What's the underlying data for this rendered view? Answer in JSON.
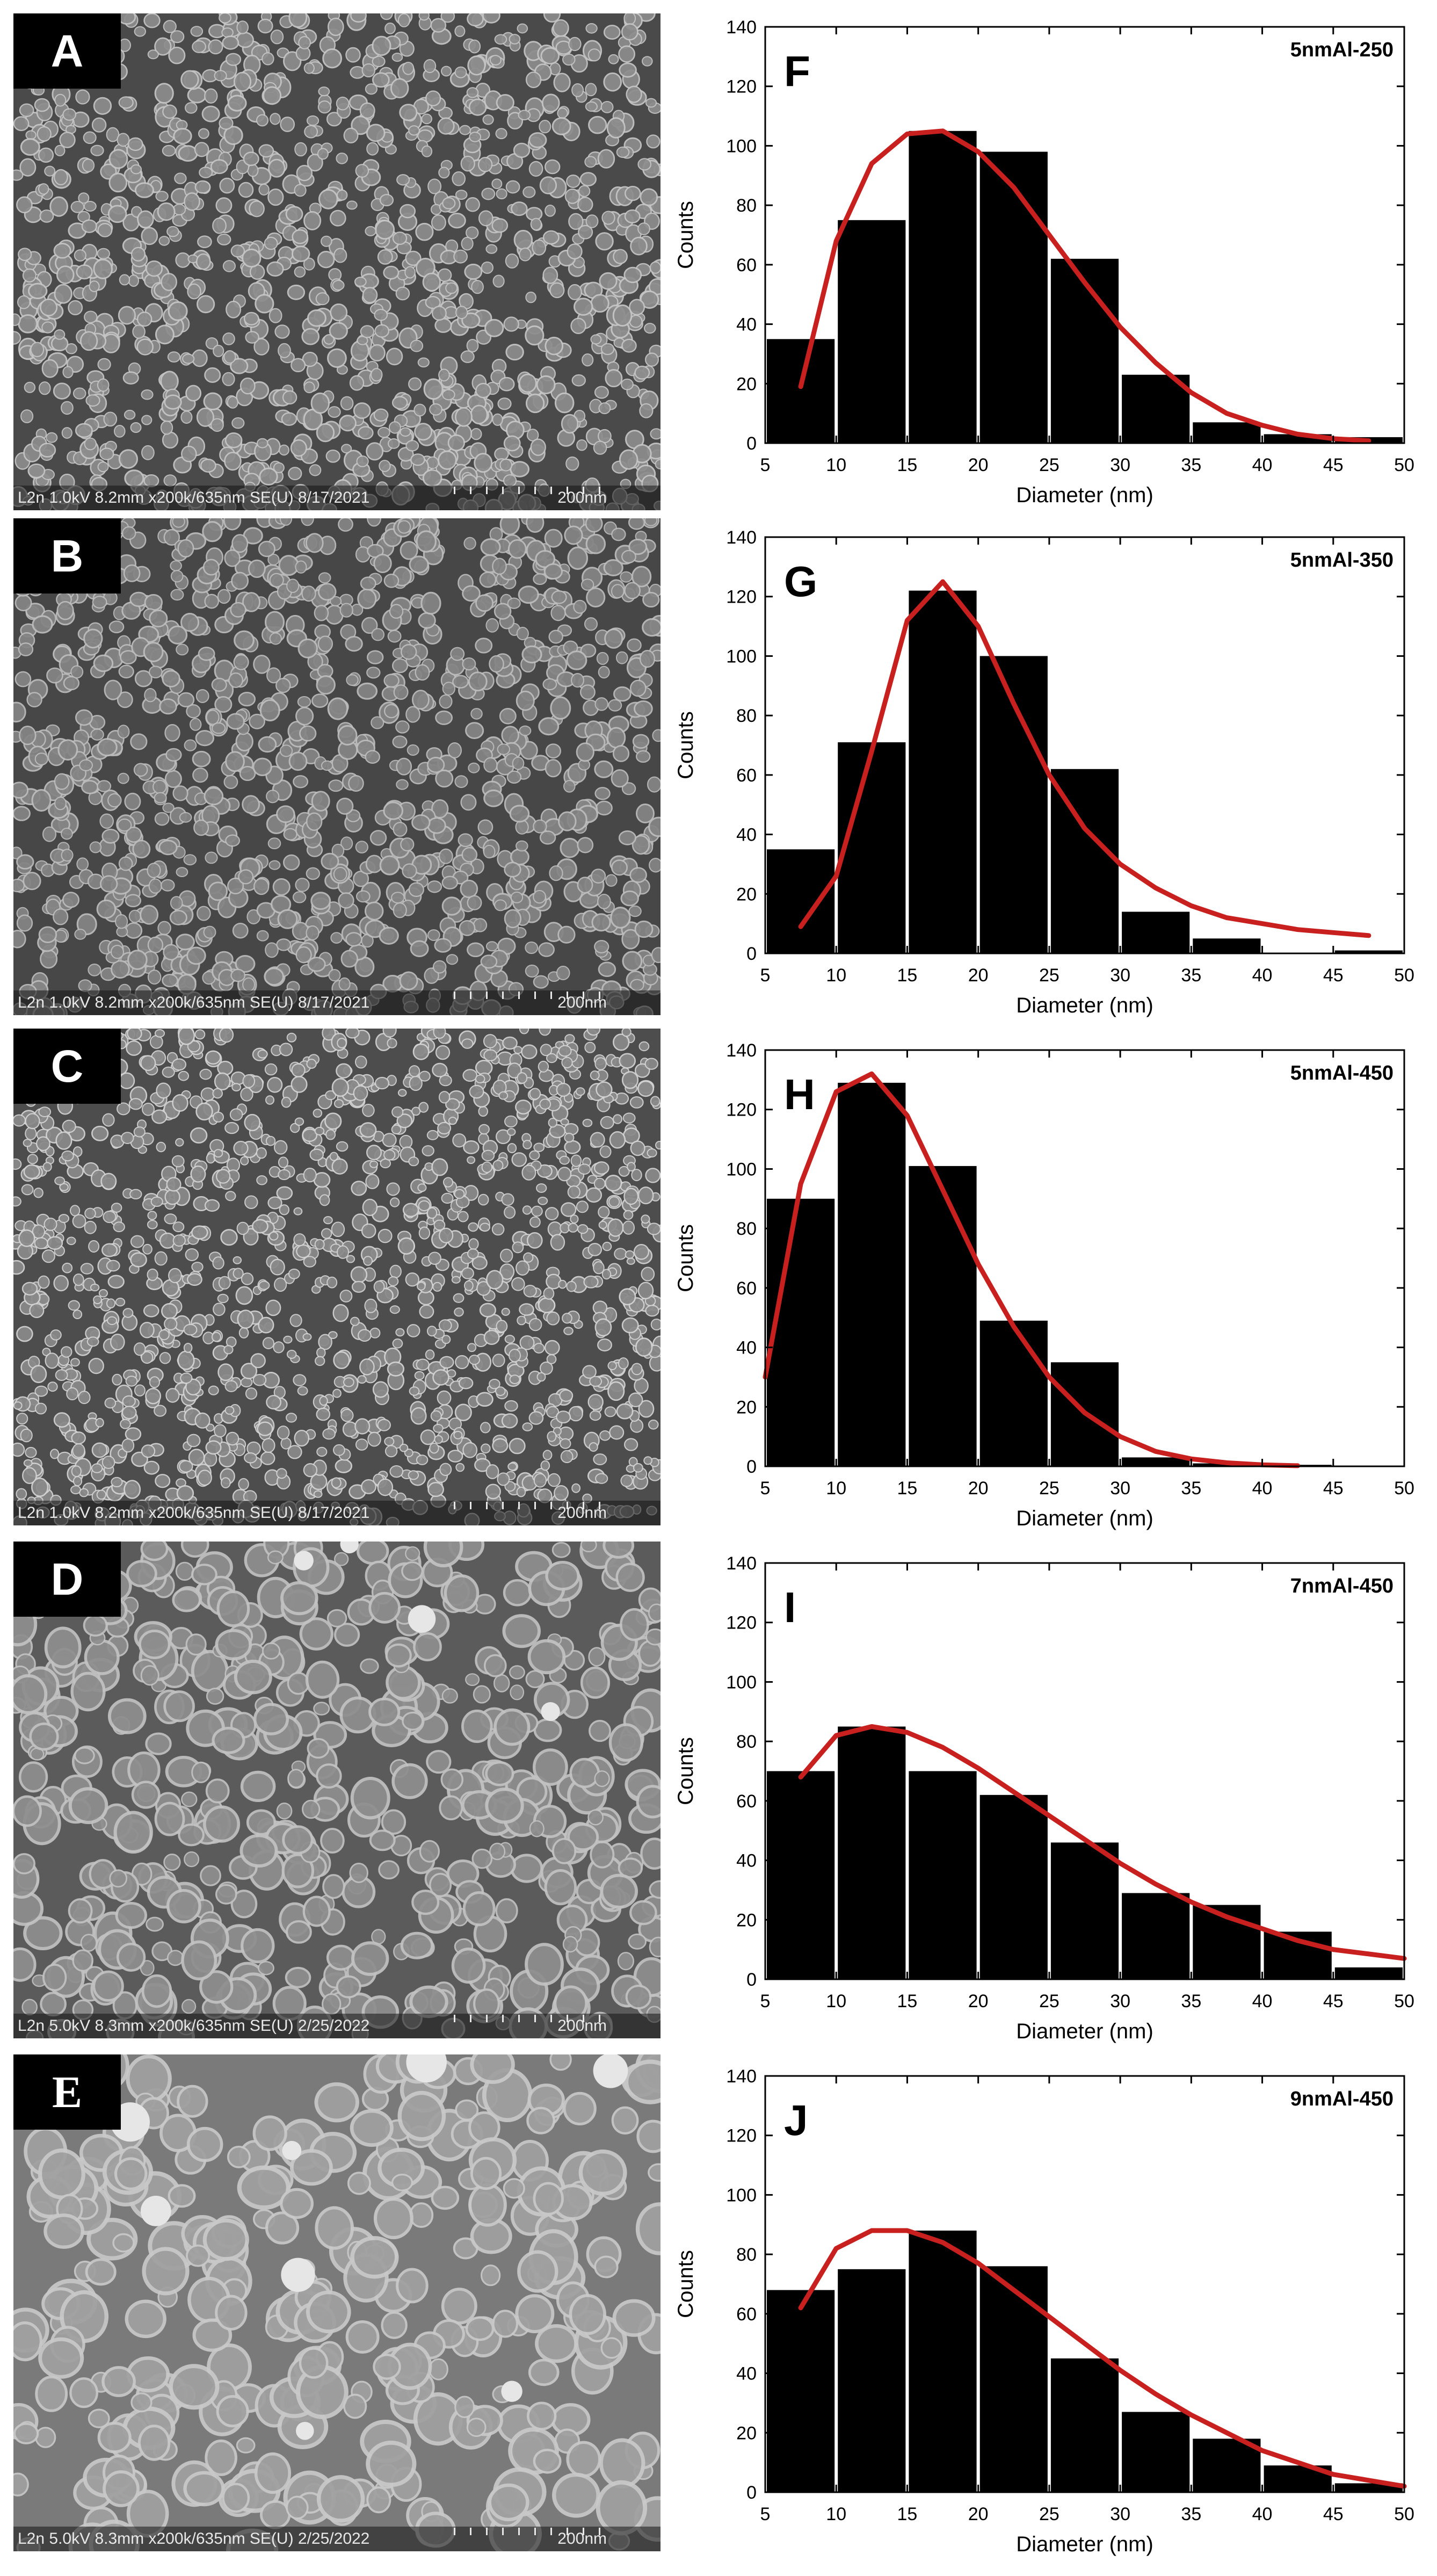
{
  "sem_panels": [
    {
      "label": "A",
      "info": "L2n 1.0kV 8.2mm x200k/635nm SE(U) 8/17/2021",
      "scale": "200nm"
    },
    {
      "label": "B",
      "info": "L2n 1.0kV 8.2mm x200k/635nm SE(U) 8/17/2021",
      "scale": "200nm"
    },
    {
      "label": "C",
      "info": "L2n 1.0kV 8.2mm x200k/635nm SE(U) 8/17/2021",
      "scale": "200nm"
    },
    {
      "label": "D",
      "info": "L2n 5.0kV 8.3mm x200k/635nm SE(U) 2/25/2022",
      "scale": "200nm"
    },
    {
      "label": "E",
      "info": "L2n 5.0kV 8.3mm x200k/635nm SE(U) 2/25/2022",
      "scale": "200nm"
    }
  ],
  "colors": {
    "bars": "#000000",
    "fit_curve": "#c8201e",
    "label_box": "#000000"
  },
  "chart_data": [
    {
      "type": "bar",
      "panel": "F",
      "sample": "5nmAl-250",
      "xlabel": "Diameter (nm)",
      "ylabel": "Counts",
      "xlim": [
        5,
        50
      ],
      "ylim": [
        0,
        140
      ],
      "xticks": [
        "5",
        "10",
        "15",
        "20",
        "25",
        "30",
        "35",
        "40",
        "45",
        "50"
      ],
      "yticks": [
        "0",
        "20",
        "40",
        "60",
        "80",
        "100",
        "120",
        "140"
      ],
      "bin_centers": [
        7.5,
        12.5,
        17.5,
        22.5,
        27.5,
        32.5,
        37.5,
        42.5,
        47.5
      ],
      "values": [
        35,
        75,
        105,
        98,
        62,
        23,
        7,
        3,
        2
      ],
      "fit_curve": {
        "x": [
          7.5,
          10,
          12.5,
          15,
          17.5,
          20,
          22.5,
          25,
          27.5,
          30,
          32.5,
          35,
          37.5,
          40,
          42.5,
          45,
          47.5
        ],
        "y": [
          19,
          68,
          94,
          104,
          105,
          98,
          86,
          70,
          54,
          39,
          27,
          17,
          10,
          6,
          3,
          1.5,
          0.8
        ]
      }
    },
    {
      "type": "bar",
      "panel": "G",
      "sample": "5nmAl-350",
      "xlabel": "Diameter (nm)",
      "ylabel": "Counts",
      "xlim": [
        5,
        50
      ],
      "ylim": [
        0,
        140
      ],
      "xticks": [
        "5",
        "10",
        "15",
        "20",
        "25",
        "30",
        "35",
        "40",
        "45",
        "50"
      ],
      "yticks": [
        "0",
        "20",
        "40",
        "60",
        "80",
        "100",
        "120",
        "140"
      ],
      "bin_centers": [
        7.5,
        12.5,
        17.5,
        22.5,
        27.5,
        32.5,
        37.5,
        42.5,
        47.5
      ],
      "values": [
        35,
        71,
        122,
        100,
        62,
        14,
        5,
        0,
        1
      ],
      "fit_curve": {
        "x": [
          7.5,
          10,
          12.5,
          15,
          17.5,
          20,
          22.5,
          25,
          27.5,
          30,
          32.5,
          35,
          37.5,
          40,
          42.5,
          45,
          47.5
        ],
        "y": [
          9,
          26,
          68,
          112,
          125,
          110,
          84,
          60,
          42,
          30,
          22,
          16,
          12,
          10,
          8,
          7,
          6
        ]
      }
    },
    {
      "type": "bar",
      "panel": "H",
      "sample": "5nmAl-450",
      "xlabel": "Diameter (nm)",
      "ylabel": "Counts",
      "xlim": [
        5,
        50
      ],
      "ylim": [
        0,
        140
      ],
      "xticks": [
        "5",
        "10",
        "15",
        "20",
        "25",
        "30",
        "35",
        "40",
        "45",
        "50"
      ],
      "yticks": [
        "0",
        "20",
        "40",
        "60",
        "80",
        "100",
        "120",
        "140"
      ],
      "bin_centers": [
        7.5,
        12.5,
        17.5,
        22.5,
        27.5,
        32.5,
        37.5,
        42.5,
        47.5
      ],
      "values": [
        90,
        129,
        101,
        49,
        35,
        3,
        1,
        0.5,
        0
      ],
      "fit_curve": {
        "x": [
          5,
          7.5,
          10,
          12.5,
          15,
          17.5,
          20,
          22.5,
          25,
          27.5,
          30,
          32.5,
          35,
          37.5,
          40,
          42.5
        ],
        "y": [
          30,
          95,
          126,
          132,
          118,
          93,
          68,
          47,
          30,
          18,
          10,
          5,
          2.5,
          1.2,
          0.5,
          0.2
        ]
      }
    },
    {
      "type": "bar",
      "panel": "I",
      "sample": "7nmAl-450",
      "xlabel": "Diameter (nm)",
      "ylabel": "Counts",
      "xlim": [
        5,
        50
      ],
      "ylim": [
        0,
        140
      ],
      "xticks": [
        "5",
        "10",
        "15",
        "20",
        "25",
        "30",
        "35",
        "40",
        "45",
        "50"
      ],
      "yticks": [
        "0",
        "20",
        "40",
        "60",
        "80",
        "100",
        "120",
        "140"
      ],
      "bin_centers": [
        7.5,
        12.5,
        17.5,
        22.5,
        27.5,
        32.5,
        37.5,
        42.5,
        47.5
      ],
      "values": [
        70,
        85,
        70,
        62,
        46,
        29,
        25,
        16,
        4
      ],
      "fit_curve": {
        "x": [
          7.5,
          10,
          12.5,
          15,
          17.5,
          20,
          22.5,
          25,
          27.5,
          30,
          32.5,
          35,
          37.5,
          40,
          42.5,
          45,
          47.5,
          50
        ],
        "y": [
          68,
          82,
          85,
          83,
          78,
          71,
          63,
          55,
          47,
          39,
          32,
          26,
          21,
          17,
          13,
          10,
          8.5,
          7
        ]
      }
    },
    {
      "type": "bar",
      "panel": "J",
      "sample": "9nmAl-450",
      "xlabel": "Diameter (nm)",
      "ylabel": "Counts",
      "xlim": [
        5,
        50
      ],
      "ylim": [
        0,
        140
      ],
      "xticks": [
        "5",
        "10",
        "15",
        "20",
        "25",
        "30",
        "35",
        "40",
        "45",
        "50"
      ],
      "yticks": [
        "0",
        "20",
        "40",
        "60",
        "80",
        "100",
        "120",
        "140"
      ],
      "bin_centers": [
        7.5,
        12.5,
        17.5,
        22.5,
        27.5,
        32.5,
        37.5,
        42.5,
        47.5
      ],
      "values": [
        68,
        75,
        88,
        76,
        45,
        27,
        18,
        9,
        3
      ],
      "fit_curve": {
        "x": [
          7.5,
          10,
          12.5,
          15,
          17.5,
          20,
          22.5,
          25,
          27.5,
          30,
          32.5,
          35,
          37.5,
          40,
          42.5,
          45,
          47.5,
          50
        ],
        "y": [
          62,
          82,
          88,
          88,
          84,
          77,
          68,
          59,
          50,
          41,
          33,
          26,
          20,
          14,
          10,
          6,
          4,
          2
        ]
      }
    }
  ]
}
